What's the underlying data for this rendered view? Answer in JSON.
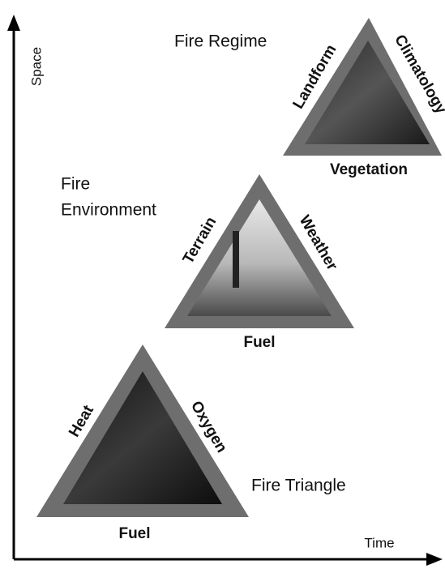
{
  "axes": {
    "y_label": "Space",
    "x_label": "Time"
  },
  "triangles": [
    {
      "title_lines": [
        "Fire Regime"
      ],
      "left": "Landform",
      "right": "Climatology",
      "bottom": "Vegetation"
    },
    {
      "title_lines": [
        "Fire",
        "Environment"
      ],
      "left": "Terrain",
      "right": "Weather",
      "bottom": "Fuel"
    },
    {
      "title_lines": [
        "Fire Triangle"
      ],
      "left": "Heat",
      "right": "Oxygen",
      "bottom": "Fuel"
    }
  ]
}
